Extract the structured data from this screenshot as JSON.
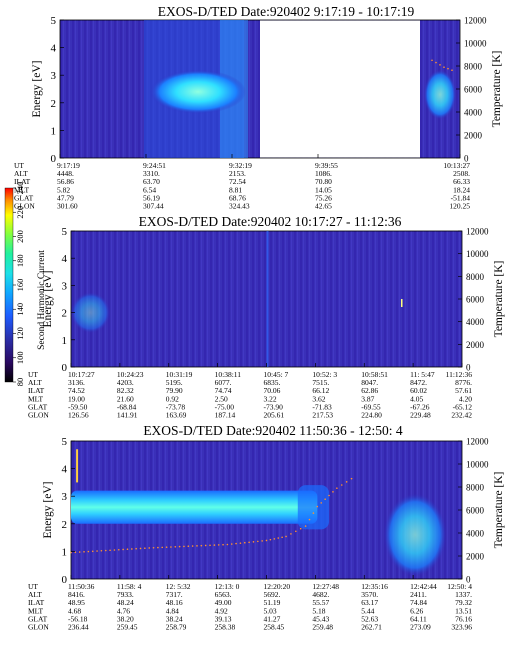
{
  "chart_data": [
    {
      "type": "heatmap",
      "title": "EXOS-D/TED   Date:920402  9:17:19 - 10:17:19",
      "ylabel": "Energy [eV]",
      "y2label": "Temperature [K]",
      "ylim": [
        0,
        5
      ],
      "y2lim": [
        0,
        12000
      ],
      "yticks": [
        "0",
        "1",
        "2",
        "3",
        "4",
        "5"
      ],
      "y2ticks": [
        "0",
        "2000",
        "4000",
        "6000",
        "8000",
        "10000",
        "12000"
      ],
      "row_labels": [
        "UT",
        "ALT",
        "ILAT",
        "MLT",
        "GLAT",
        "GLON"
      ],
      "columns": [
        {
          "frac": 0.0,
          "values": [
            "9:17:19",
            "4448.",
            "56.86",
            "5.82",
            "47.79",
            "301.60"
          ]
        },
        {
          "frac": 0.215,
          "values": [
            "9:24:51",
            "3310.",
            "63.70",
            "6.54",
            "56.19",
            "307.44"
          ]
        },
        {
          "frac": 0.43,
          "values": [
            "9:32:19",
            "2153.",
            "72.54",
            "8.81",
            "68.76",
            "324.43"
          ]
        },
        {
          "frac": 0.645,
          "values": [
            "9:39:55",
            "1086.",
            "70.80",
            "14.05",
            "75.26",
            "42.65"
          ]
        },
        {
          "frac": 1.0,
          "values": [
            "10:13:27",
            "2508.",
            "66.33",
            "18.24",
            "-51.84",
            "120.25"
          ]
        }
      ],
      "data_gap": [
        0.5,
        0.9
      ],
      "temperature_trace": [
        [
          0.93,
          8500
        ],
        [
          0.96,
          7900
        ],
        [
          0.99,
          7500
        ]
      ]
    },
    {
      "type": "heatmap",
      "title": "EXOS-D/TED   Date:920402  10:17:27 - 11:12:36",
      "ylabel": "Energy [eV]",
      "y2label": "Temperature [K]",
      "ylim": [
        0,
        5
      ],
      "y2lim": [
        0,
        12000
      ],
      "yticks": [
        "0",
        "1",
        "2",
        "3",
        "4",
        "5"
      ],
      "y2ticks": [
        "0",
        "2000",
        "4000",
        "6000",
        "8000",
        "10000",
        "12000"
      ],
      "row_labels": [
        "UT",
        "ALT",
        "ILAT",
        "MLT",
        "GLAT",
        "GLON"
      ],
      "columns": [
        {
          "frac": 0.0,
          "values": [
            "10:17:27",
            "3136.",
            "74.52",
            "19.00",
            "-59.50",
            "126.56"
          ]
        },
        {
          "frac": 0.125,
          "values": [
            "10:24:23",
            "4203.",
            "82.32",
            "21.60",
            "-68.84",
            "141.91"
          ]
        },
        {
          "frac": 0.25,
          "values": [
            "10:31:19",
            "5195.",
            "79.90",
            "0.92",
            "-73.78",
            "163.69"
          ]
        },
        {
          "frac": 0.375,
          "values": [
            "10:38:11",
            "6077.",
            "74.74",
            "2.50",
            "-75.00",
            "187.14"
          ]
        },
        {
          "frac": 0.5,
          "values": [
            "10:45: 7",
            "6835.",
            "70.06",
            "3.22",
            "-73.90",
            "205.61"
          ]
        },
        {
          "frac": 0.625,
          "values": [
            "10:52: 3",
            "7515.",
            "66.12",
            "3.62",
            "-71.83",
            "217.53"
          ]
        },
        {
          "frac": 0.75,
          "values": [
            "10:58:51",
            "8047.",
            "62.86",
            "3.87",
            "-69.55",
            "224.80"
          ]
        },
        {
          "frac": 0.875,
          "values": [
            "11: 5:47",
            "8472.",
            "60.02",
            "4.05",
            "-67.26",
            "229.48"
          ]
        },
        {
          "frac": 1.0,
          "values": [
            "11:12:36",
            "8776.",
            "57.61",
            "4.20",
            "-65.12",
            "232.42"
          ]
        }
      ],
      "colorbar": {
        "label": "Second Harmonic Current",
        "ticks": [
          "80",
          "100",
          "120",
          "140",
          "160",
          "180",
          "200",
          "220",
          "240"
        ],
        "range": [
          80,
          240
        ]
      }
    },
    {
      "type": "heatmap",
      "title": "EXOS-D/TED   Date:920402  11:50:36 - 12:50: 4",
      "ylabel": "Energy [eV]",
      "y2label": "Temperature [K]",
      "ylim": [
        0,
        5
      ],
      "y2lim": [
        0,
        12000
      ],
      "yticks": [
        "0",
        "1",
        "2",
        "3",
        "4",
        "5"
      ],
      "y2ticks": [
        "0",
        "2000",
        "4000",
        "6000",
        "8000",
        "10000",
        "12000"
      ],
      "row_labels": [
        "UT",
        "ALT",
        "ILAT",
        "MLT",
        "GLAT",
        "GLON"
      ],
      "columns": [
        {
          "frac": 0.0,
          "values": [
            "11:50:36",
            "8416.",
            "48.95",
            "4.68",
            "-56.18",
            "236.44"
          ]
        },
        {
          "frac": 0.125,
          "values": [
            "11:58: 4",
            "7933.",
            "48.24",
            "4.76",
            "38.20",
            "259.45"
          ]
        },
        {
          "frac": 0.25,
          "values": [
            "12: 5:32",
            "7317.",
            "48.16",
            "4.84",
            "38.24",
            "258.79"
          ]
        },
        {
          "frac": 0.375,
          "values": [
            "12:13: 0",
            "6563.",
            "49.00",
            "4.92",
            "39.13",
            "258.38"
          ]
        },
        {
          "frac": 0.5,
          "values": [
            "12:20:20",
            "5692.",
            "51.19",
            "5.03",
            "41.27",
            "258.45"
          ]
        },
        {
          "frac": 0.625,
          "values": [
            "12:27:48",
            "4682.",
            "55.57",
            "5.18",
            "45.43",
            "259.48"
          ]
        },
        {
          "frac": 0.75,
          "values": [
            "12:35:16",
            "3570.",
            "63.17",
            "5.44",
            "52.63",
            "262.71"
          ]
        },
        {
          "frac": 0.875,
          "values": [
            "12:42:44",
            "2411.",
            "74.84",
            "6.26",
            "64.11",
            "273.09"
          ]
        },
        {
          "frac": 1.0,
          "values": [
            "12:50: 4",
            "1337.",
            "79.32",
            "13.51",
            "76.16",
            "323.96"
          ]
        }
      ],
      "temperature_trace": [
        [
          0.0,
          2300
        ],
        [
          0.1,
          2500
        ],
        [
          0.2,
          2700
        ],
        [
          0.3,
          2850
        ],
        [
          0.4,
          3000
        ],
        [
          0.5,
          3350
        ],
        [
          0.55,
          3700
        ],
        [
          0.6,
          4600
        ],
        [
          0.63,
          6300
        ],
        [
          0.68,
          7900
        ],
        [
          0.73,
          9000
        ]
      ]
    }
  ]
}
